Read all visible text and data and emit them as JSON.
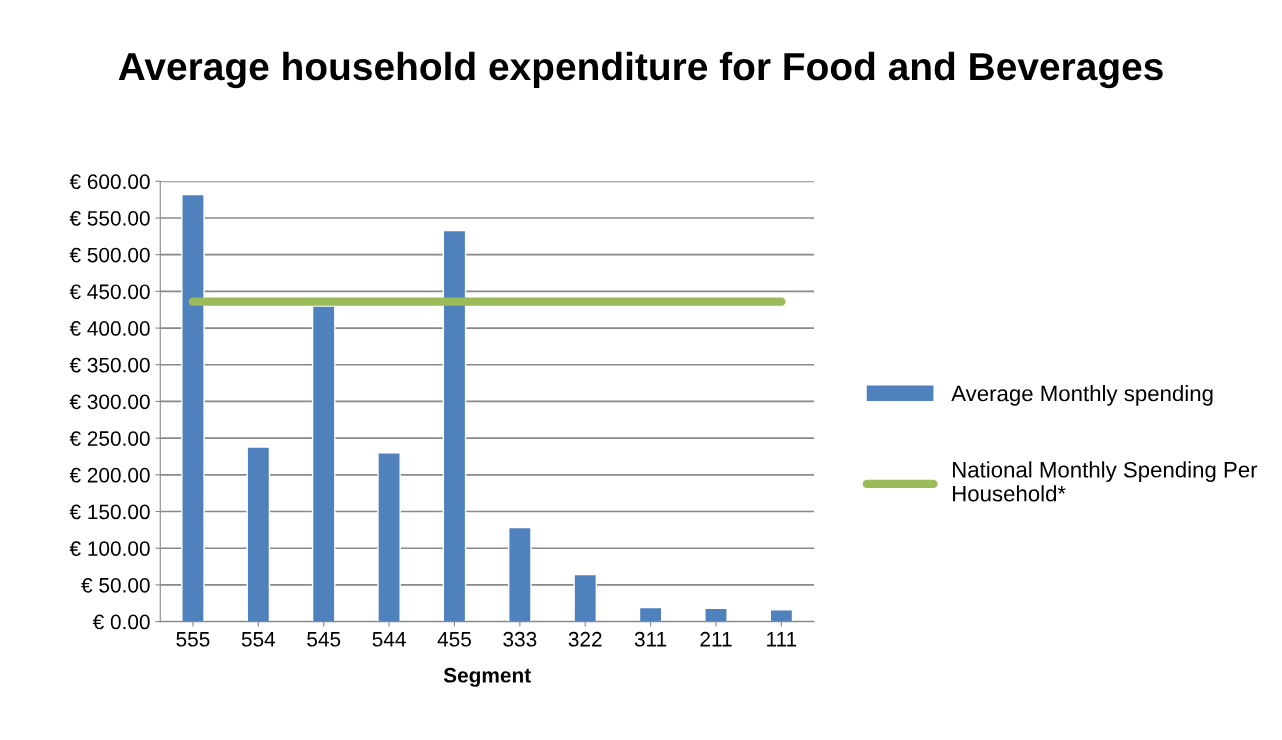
{
  "chart_data": {
    "type": "bar",
    "title": "Average household expenditure for Food and Beverages",
    "xlabel": "Segment",
    "categories": [
      "555",
      "554",
      "545",
      "544",
      "455",
      "333",
      "322",
      "311",
      "211",
      "111"
    ],
    "series": [
      {
        "name": "Average Monthly spending",
        "color": "#4f81bd",
        "values": [
          582,
          238,
          430,
          230,
          533,
          128,
          64,
          19,
          18,
          16
        ]
      },
      {
        "name": "National Monthly Spending Per Household*",
        "type": "line",
        "color": "#9bbb59",
        "values": [
          436,
          436,
          436,
          436,
          436,
          436,
          436,
          436,
          436,
          436
        ]
      }
    ],
    "ylim": [
      0,
      600
    ],
    "yticks": [
      {
        "value": 0,
        "label": "€ 0.00"
      },
      {
        "value": 50,
        "label": "€ 50.00"
      },
      {
        "value": 100,
        "label": "€ 100.00"
      },
      {
        "value": 150,
        "label": "€ 150.00"
      },
      {
        "value": 200,
        "label": "€ 200.00"
      },
      {
        "value": 250,
        "label": "€ 250.00"
      },
      {
        "value": 300,
        "label": "€ 300.00"
      },
      {
        "value": 350,
        "label": "€ 350.00"
      },
      {
        "value": 400,
        "label": "€ 400.00"
      },
      {
        "value": 450,
        "label": "€ 450.00"
      },
      {
        "value": 500,
        "label": "€ 500.00"
      },
      {
        "value": 550,
        "label": "€ 550.00"
      },
      {
        "value": 600,
        "label": "€ 600.00"
      }
    ],
    "grid": "y",
    "legend": "right"
  }
}
